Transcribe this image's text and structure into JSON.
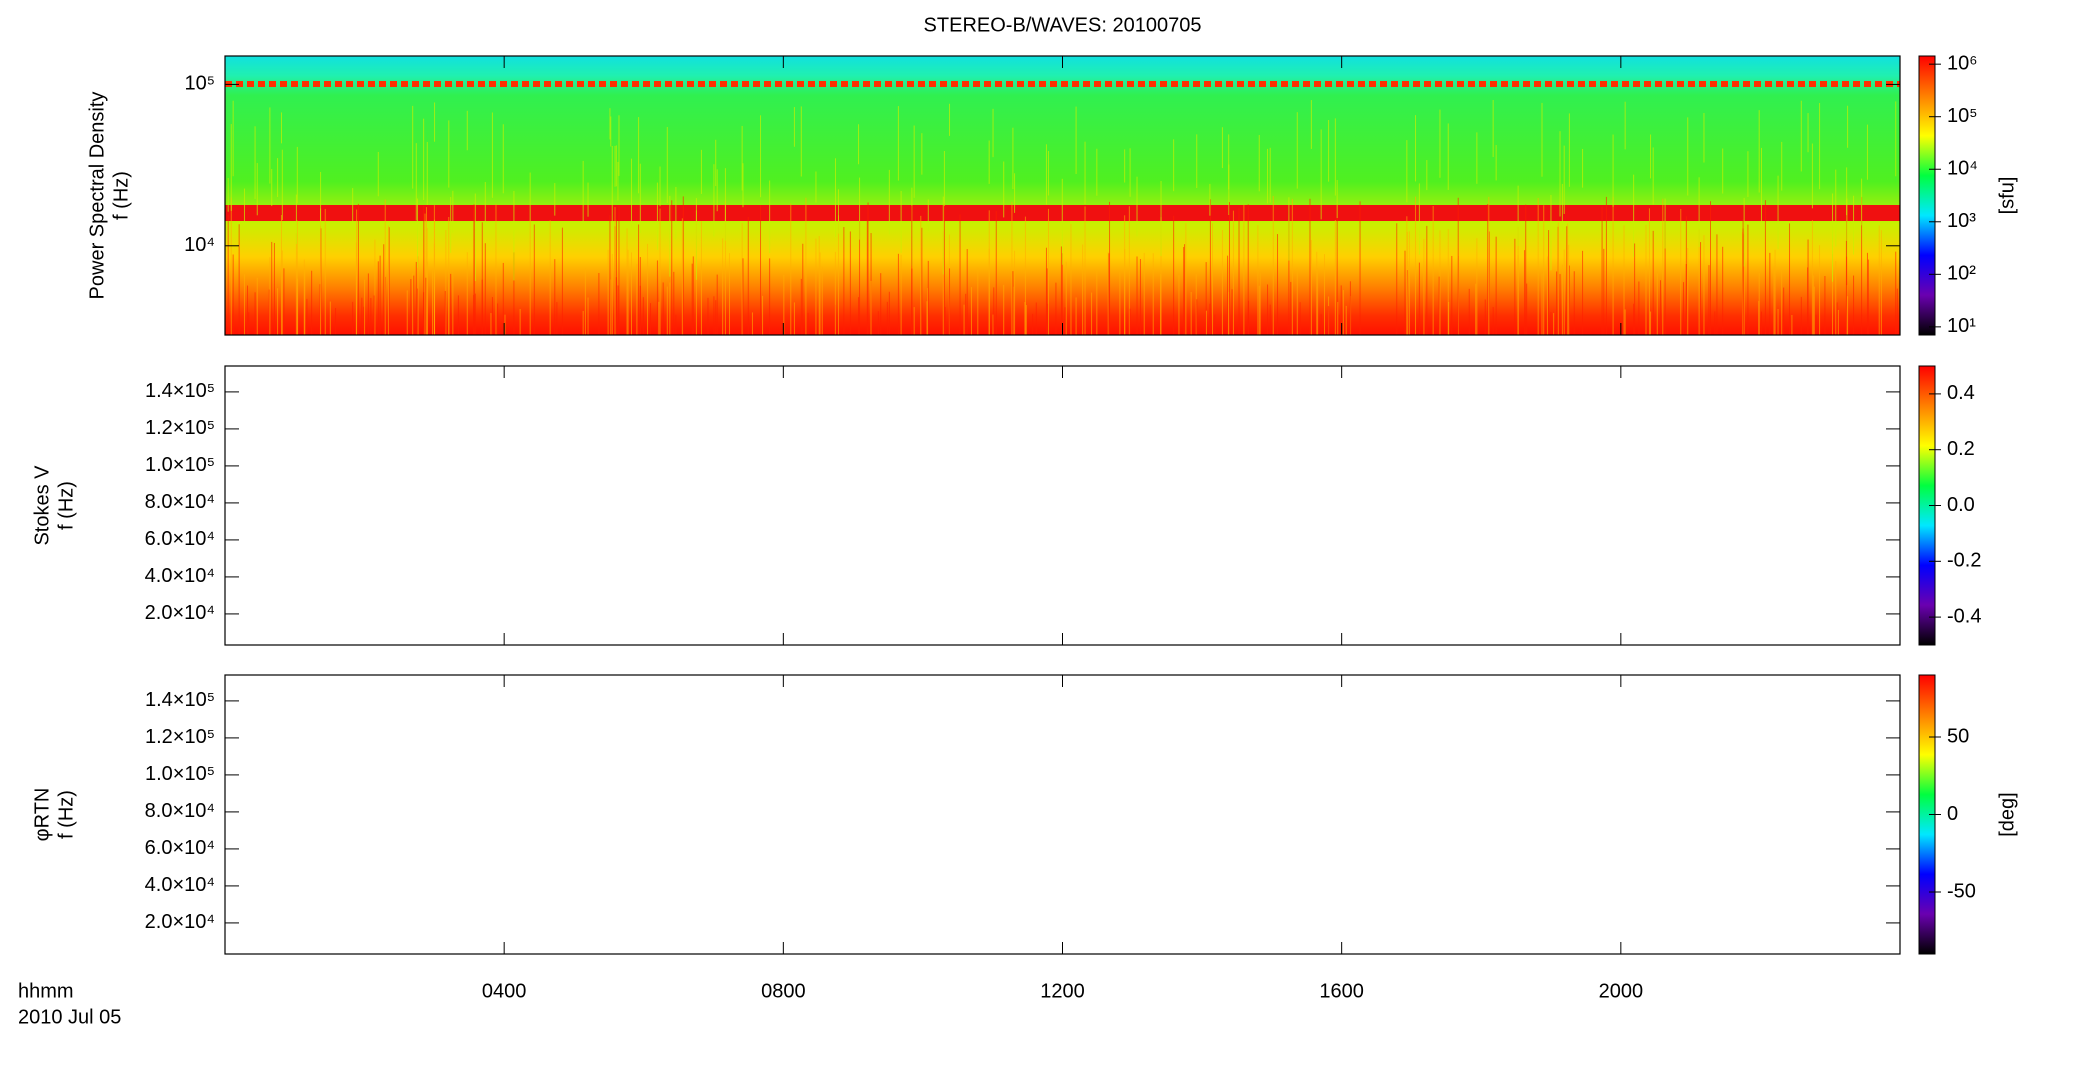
{
  "chart_data": [
    {
      "type": "heatmap",
      "title": "STEREO-B/WAVES: 20100705",
      "ylabel": [
        "Power Spectral Density",
        "f (Hz)"
      ],
      "ylog": true,
      "ylim": [
        2800,
        150000
      ],
      "yticks": [
        {
          "value": 10000,
          "label": "10⁴"
        },
        {
          "value": 100000,
          "label": "10⁵"
        }
      ],
      "xlim": [
        0,
        24
      ],
      "xticks": [
        {
          "value": 4,
          "label": "0400"
        },
        {
          "value": 8,
          "label": "0800"
        },
        {
          "value": 12,
          "label": "1200"
        },
        {
          "value": 16,
          "label": "1600"
        },
        {
          "value": 20,
          "label": "2000"
        }
      ],
      "colormap": [
        "#000000",
        "#6a00b0",
        "#0000ff",
        "#00e8ff",
        "#00ff40",
        "#ffff00",
        "#ff8000",
        "#ff0000"
      ],
      "colorbar": {
        "log": true,
        "lim": [
          7,
          1430000
        ],
        "ticks": [
          {
            "value": 10,
            "label": "10¹"
          },
          {
            "value": 100,
            "label": "10²"
          },
          {
            "value": 1000,
            "label": "10³"
          },
          {
            "value": 10000,
            "label": "10⁴"
          },
          {
            "value": 100000,
            "label": "10⁵"
          },
          {
            "value": 1000000,
            "label": "10⁶"
          }
        ],
        "label": "[sfu]"
      }
    },
    {
      "type": "heatmap",
      "ylabel": [
        "Stokes V",
        "f (Hz)"
      ],
      "ylim": [
        3200,
        154000
      ],
      "yticks": [
        {
          "value": 20000,
          "label": "2.0×10⁴"
        },
        {
          "value": 40000,
          "label": "4.0×10⁴"
        },
        {
          "value": 60000,
          "label": "6.0×10⁴"
        },
        {
          "value": 80000,
          "label": "8.0×10⁴"
        },
        {
          "value": 100000,
          "label": "1.0×10⁵"
        },
        {
          "value": 120000,
          "label": "1.2×10⁵"
        },
        {
          "value": 140000,
          "label": "1.4×10⁵"
        }
      ],
      "xlim": [
        0,
        24
      ],
      "xticks": [
        {
          "value": 4,
          "label": "0400"
        },
        {
          "value": 8,
          "label": "0800"
        },
        {
          "value": 12,
          "label": "1200"
        },
        {
          "value": 16,
          "label": "1600"
        },
        {
          "value": 20,
          "label": "2000"
        }
      ],
      "colormap": [
        "#000000",
        "#6a00b0",
        "#0000ff",
        "#00e8ff",
        "#00ff40",
        "#ffff00",
        "#ff8000",
        "#ff0000"
      ],
      "colorbar": {
        "lim": [
          -0.5,
          0.5
        ],
        "ticks": [
          -0.4,
          -0.2,
          {
            "value": 0,
            "label": "0.0"
          },
          0.2,
          0.4
        ]
      }
    },
    {
      "type": "heatmap",
      "ylabel": [
        "φRTN",
        "f (Hz)"
      ],
      "ylim": [
        3200,
        154000
      ],
      "yticks": [
        {
          "value": 20000,
          "label": "2.0×10⁴"
        },
        {
          "value": 40000,
          "label": "4.0×10⁴"
        },
        {
          "value": 60000,
          "label": "6.0×10⁴"
        },
        {
          "value": 80000,
          "label": "8.0×10⁴"
        },
        {
          "value": 100000,
          "label": "1.0×10⁵"
        },
        {
          "value": 120000,
          "label": "1.2×10⁵"
        },
        {
          "value": 140000,
          "label": "1.4×10⁵"
        }
      ],
      "xlim": [
        0,
        24
      ],
      "xticks": [
        {
          "value": 4,
          "label": "0400"
        },
        {
          "value": 8,
          "label": "0800"
        },
        {
          "value": 12,
          "label": "1200"
        },
        {
          "value": 16,
          "label": "1600"
        },
        {
          "value": 20,
          "label": "2000"
        }
      ],
      "colormap": [
        "#000000",
        "#6a00b0",
        "#0000ff",
        "#00e8ff",
        "#00ff40",
        "#ffff00",
        "#ff8000",
        "#ff0000"
      ],
      "colorbar": {
        "lim": [
          -90,
          90
        ],
        "ticks": [
          -50,
          0,
          50
        ],
        "label": "[deg]"
      },
      "xlabel": "hhmm",
      "date": "2010 Jul 05"
    }
  ]
}
